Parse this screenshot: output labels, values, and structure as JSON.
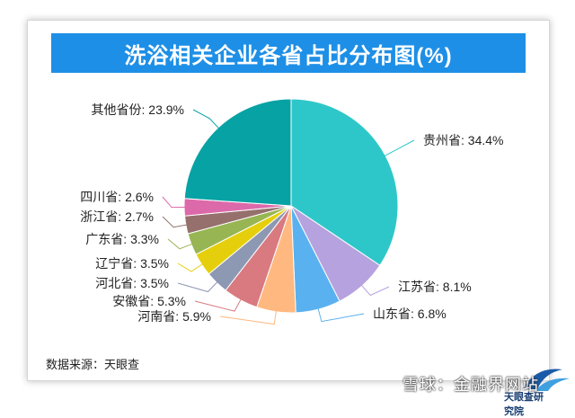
{
  "title": "洗浴相关企业各省占比分布图(%)",
  "source": "数据来源：天眼查",
  "logo_text": "天眼查研究院",
  "watermark": "雪球：金融界网站",
  "colors": {
    "title_bg": "#1e8fe6"
  },
  "chart_data": {
    "type": "pie",
    "title": "洗浴相关企业各省占比分布图(%)",
    "unit": "%",
    "slices": [
      {
        "label": "贵州省: 34.4%",
        "name": "贵州省",
        "value": 34.4,
        "color": "#2ec7c9"
      },
      {
        "label": "江苏省: 8.1%",
        "name": "江苏省",
        "value": 8.1,
        "color": "#b6a2de"
      },
      {
        "label": "山东省: 6.8%",
        "name": "山东省",
        "value": 6.8,
        "color": "#5ab1ef"
      },
      {
        "label": "河南省: 5.9%",
        "name": "河南省",
        "value": 5.9,
        "color": "#ffb980"
      },
      {
        "label": "安徽省: 5.3%",
        "name": "安徽省",
        "value": 5.3,
        "color": "#d87a80"
      },
      {
        "label": "河北省: 3.5%",
        "name": "河北省",
        "value": 3.5,
        "color": "#8d98b3"
      },
      {
        "label": "辽宁省: 3.5%",
        "name": "辽宁省",
        "value": 3.5,
        "color": "#e5cf0d"
      },
      {
        "label": "广东省: 3.3%",
        "name": "广东省",
        "value": 3.3,
        "color": "#97b552"
      },
      {
        "label": "浙江省: 2.7%",
        "name": "浙江省",
        "value": 2.7,
        "color": "#95706d"
      },
      {
        "label": "四川省: 2.6%",
        "name": "四川省",
        "value": 2.6,
        "color": "#dc69aa"
      },
      {
        "label": "其他省份: 23.9%",
        "name": "其他省份",
        "value": 23.9,
        "color": "#07a2a4"
      }
    ]
  }
}
